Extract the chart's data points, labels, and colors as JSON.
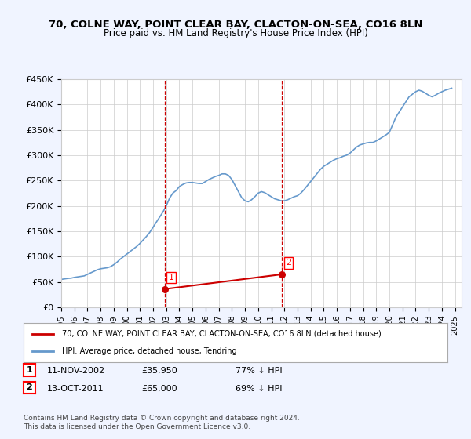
{
  "title": "70, COLNE WAY, POINT CLEAR BAY, CLACTON-ON-SEA, CO16 8LN",
  "subtitle": "Price paid vs. HM Land Registry's House Price Index (HPI)",
  "hpi_years": [
    1995,
    1995.25,
    1995.5,
    1995.75,
    1996,
    1996.25,
    1996.5,
    1996.75,
    1997,
    1997.25,
    1997.5,
    1997.75,
    1998,
    1998.25,
    1998.5,
    1998.75,
    1999,
    1999.25,
    1999.5,
    1999.75,
    2000,
    2000.25,
    2000.5,
    2000.75,
    2001,
    2001.25,
    2001.5,
    2001.75,
    2002,
    2002.25,
    2002.5,
    2002.75,
    2003,
    2003.25,
    2003.5,
    2003.75,
    2004,
    2004.25,
    2004.5,
    2004.75,
    2005,
    2005.25,
    2005.5,
    2005.75,
    2006,
    2006.25,
    2006.5,
    2006.75,
    2007,
    2007.25,
    2007.5,
    2007.75,
    2008,
    2008.25,
    2008.5,
    2008.75,
    2009,
    2009.25,
    2009.5,
    2009.75,
    2010,
    2010.25,
    2010.5,
    2010.75,
    2011,
    2011.25,
    2011.5,
    2011.75,
    2012,
    2012.25,
    2012.5,
    2012.75,
    2013,
    2013.25,
    2013.5,
    2013.75,
    2014,
    2014.25,
    2014.5,
    2014.75,
    2015,
    2015.25,
    2015.5,
    2015.75,
    2016,
    2016.25,
    2016.5,
    2016.75,
    2017,
    2017.25,
    2017.5,
    2017.75,
    2018,
    2018.25,
    2018.5,
    2018.75,
    2019,
    2019.25,
    2019.5,
    2019.75,
    2020,
    2020.25,
    2020.5,
    2020.75,
    2021,
    2021.25,
    2021.5,
    2021.75,
    2022,
    2022.25,
    2022.5,
    2022.75,
    2023,
    2023.25,
    2023.5,
    2023.75,
    2024,
    2024.25,
    2024.5,
    2024.75
  ],
  "hpi_values": [
    55000,
    56000,
    57000,
    57500,
    59000,
    60000,
    61000,
    62000,
    65000,
    68000,
    71000,
    74000,
    76000,
    77000,
    78000,
    80000,
    84000,
    89000,
    95000,
    100000,
    105000,
    110000,
    115000,
    120000,
    126000,
    133000,
    140000,
    148000,
    158000,
    168000,
    178000,
    188000,
    200000,
    215000,
    225000,
    230000,
    238000,
    242000,
    245000,
    246000,
    246000,
    245000,
    244000,
    244000,
    248000,
    252000,
    255000,
    258000,
    260000,
    263000,
    263000,
    260000,
    252000,
    240000,
    228000,
    216000,
    210000,
    208000,
    212000,
    218000,
    225000,
    228000,
    226000,
    222000,
    218000,
    214000,
    212000,
    210000,
    210000,
    212000,
    215000,
    218000,
    220000,
    225000,
    232000,
    240000,
    248000,
    256000,
    264000,
    272000,
    278000,
    282000,
    286000,
    290000,
    293000,
    295000,
    298000,
    300000,
    304000,
    310000,
    316000,
    320000,
    322000,
    324000,
    325000,
    325000,
    328000,
    332000,
    336000,
    340000,
    345000,
    360000,
    375000,
    385000,
    395000,
    405000,
    415000,
    420000,
    425000,
    428000,
    426000,
    422000,
    418000,
    415000,
    418000,
    422000,
    425000,
    428000,
    430000,
    432000
  ],
  "sale_years": [
    2002.87,
    2011.79
  ],
  "sale_values": [
    35950,
    65000
  ],
  "sale_labels": [
    "1",
    "2"
  ],
  "vline_years": [
    2002.87,
    2011.79
  ],
  "vline_color": "#cc0000",
  "vline_style": "--",
  "hpi_color": "#6699cc",
  "sale_color": "#cc0000",
  "sale_dot_color": "#cc0000",
  "ylim": [
    0,
    450000
  ],
  "yticks": [
    0,
    50000,
    100000,
    150000,
    200000,
    250000,
    300000,
    350000,
    400000,
    450000
  ],
  "xlim": [
    1995,
    2025.5
  ],
  "xtick_years": [
    1995,
    1996,
    1997,
    1998,
    1999,
    2000,
    2001,
    2002,
    2003,
    2004,
    2005,
    2006,
    2007,
    2008,
    2009,
    2010,
    2011,
    2012,
    2013,
    2014,
    2015,
    2016,
    2017,
    2018,
    2019,
    2020,
    2021,
    2022,
    2023,
    2024,
    2025
  ],
  "legend_label1": "70, COLNE WAY, POINT CLEAR BAY, CLACTON-ON-SEA, CO16 8LN (detached house)",
  "legend_label2": "HPI: Average price, detached house, Tendring",
  "table_rows": [
    {
      "num": "1",
      "date": "11-NOV-2002",
      "price": "£35,950",
      "pct": "77% ↓ HPI"
    },
    {
      "num": "2",
      "date": "13-OCT-2011",
      "price": "£65,000",
      "pct": "69% ↓ HPI"
    }
  ],
  "footnote": "Contains HM Land Registry data © Crown copyright and database right 2024.\nThis data is licensed under the Open Government Licence v3.0.",
  "bg_color": "#f0f4ff",
  "plot_bg_color": "#ffffff",
  "grid_color": "#cccccc"
}
